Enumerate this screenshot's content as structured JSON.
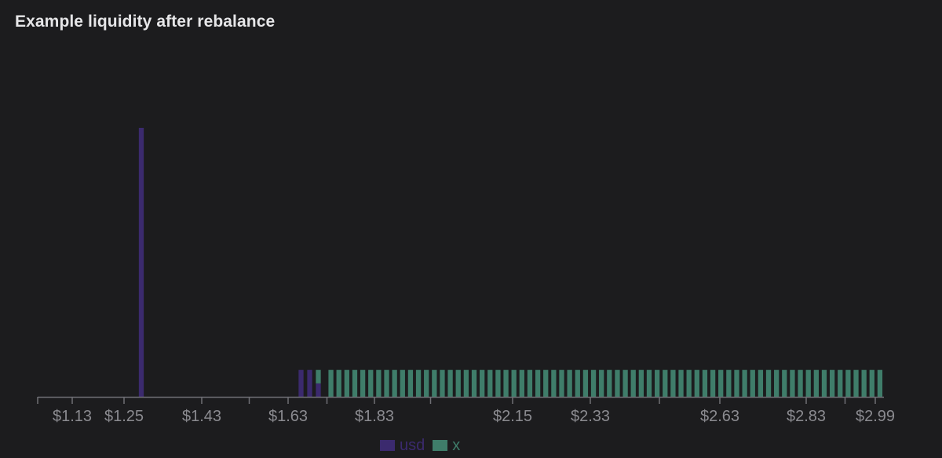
{
  "chart_data": {
    "type": "bar",
    "stacked": true,
    "title": "Example liquidity after rebalance",
    "xlabel": "",
    "ylabel": "",
    "grid": false,
    "legend_position": "bottom-center",
    "price_range": [
      1.05,
      3.01
    ],
    "ylim": [
      0,
      100
    ],
    "x_ticks": [
      {
        "value": 1.05,
        "label": ""
      },
      {
        "value": 1.13,
        "label": "$1.13"
      },
      {
        "value": 1.25,
        "label": "$1.25"
      },
      {
        "value": 1.43,
        "label": "$1.43"
      },
      {
        "value": 1.54,
        "label": ""
      },
      {
        "value": 1.63,
        "label": "$1.63"
      },
      {
        "value": 1.72,
        "label": ""
      },
      {
        "value": 1.83,
        "label": "$1.83"
      },
      {
        "value": 1.96,
        "label": ""
      },
      {
        "value": 2.15,
        "label": "$2.15"
      },
      {
        "value": 2.33,
        "label": "$2.33"
      },
      {
        "value": 2.49,
        "label": ""
      },
      {
        "value": 2.63,
        "label": "$2.63"
      },
      {
        "value": 2.83,
        "label": "$2.83"
      },
      {
        "value": 2.92,
        "label": ""
      },
      {
        "value": 2.99,
        "label": "$2.99"
      }
    ],
    "series": [
      {
        "name": "usd",
        "color": "#3b2a6e",
        "bars": [
          {
            "price": 1.29,
            "value": 100
          },
          {
            "price": 1.66,
            "value": 10
          },
          {
            "price": 1.68,
            "value": 10
          },
          {
            "price": 1.7,
            "value": 5
          }
        ]
      },
      {
        "name": "x",
        "color": "#3f7d6a",
        "bars": [
          {
            "price": 1.7,
            "value": 5
          }
        ],
        "uniform_band": {
          "start": 1.72,
          "end": 3.01,
          "count": 70,
          "value": 10
        }
      }
    ]
  }
}
